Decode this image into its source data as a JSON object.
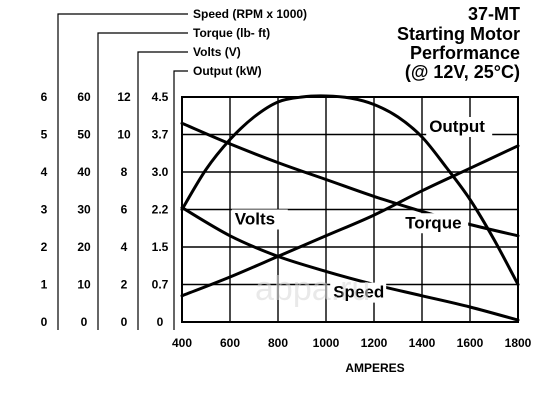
{
  "title_lines": [
    "37-MT",
    "Starting Motor",
    "Performance",
    "(@ 12V, 25°C)"
  ],
  "watermark": "abpa.ru",
  "chart_data": {
    "type": "line",
    "xlabel": "AMPERES",
    "xlim": [
      400,
      1800
    ],
    "xticks": [
      "400",
      "600",
      "800",
      "1000",
      "1200",
      "1400",
      "1600",
      "1800"
    ],
    "axes": [
      {
        "key": "speed",
        "label": "Speed (RPM x 1000)",
        "ticks": [
          "0",
          "1",
          "2",
          "3",
          "4",
          "5",
          "6"
        ],
        "range": [
          0,
          6
        ]
      },
      {
        "key": "torque",
        "label": "Torque (lb- ft)",
        "ticks": [
          "0",
          "10",
          "20",
          "30",
          "40",
          "50",
          "60"
        ],
        "range": [
          0,
          60
        ]
      },
      {
        "key": "volts",
        "label": "Volts (V)",
        "ticks": [
          "0",
          "2",
          "4",
          "6",
          "8",
          "10",
          "12"
        ],
        "range": [
          0,
          12
        ]
      },
      {
        "key": "output",
        "label": "Output (kW)",
        "ticks": [
          "0",
          "0.7",
          "1.5",
          "2.2",
          "3.0",
          "3.7",
          "4.5"
        ],
        "range": [
          0,
          4.5
        ]
      }
    ],
    "series": [
      {
        "name": "Output",
        "axis": "output",
        "label_at": [
          1430,
          3.8
        ],
        "x": [
          400,
          500,
          600,
          700,
          800,
          900,
          1000,
          1100,
          1200,
          1300,
          1400,
          1500,
          1600,
          1700,
          1800
        ],
        "y": [
          2.25,
          3.05,
          3.65,
          4.1,
          4.4,
          4.5,
          4.52,
          4.48,
          4.35,
          4.1,
          3.7,
          3.1,
          2.45,
          1.65,
          0.75
        ]
      },
      {
        "name": "Volts",
        "axis": "volts",
        "label_at": [
          620,
          5.2
        ],
        "x": [
          400,
          600,
          800,
          1000,
          1200,
          1400,
          1600,
          1800
        ],
        "y": [
          10.6,
          9.5,
          8.5,
          7.6,
          6.7,
          5.9,
          5.2,
          4.6
        ]
      },
      {
        "name": "Torque",
        "axis": "torque",
        "label_at": [
          1330,
          25
        ],
        "x": [
          400,
          600,
          800,
          1000,
          1200,
          1400,
          1600,
          1800
        ],
        "y": [
          7,
          12,
          17.5,
          23,
          28.5,
          35,
          41,
          47
        ]
      },
      {
        "name": "Speed",
        "axis": "speed",
        "label_at": [
          1030,
          0.65
        ],
        "x": [
          400,
          600,
          800,
          1000,
          1200,
          1400,
          1600,
          1800
        ],
        "y": [
          3.05,
          2.3,
          1.75,
          1.35,
          1.0,
          0.7,
          0.4,
          0.05
        ]
      }
    ]
  }
}
